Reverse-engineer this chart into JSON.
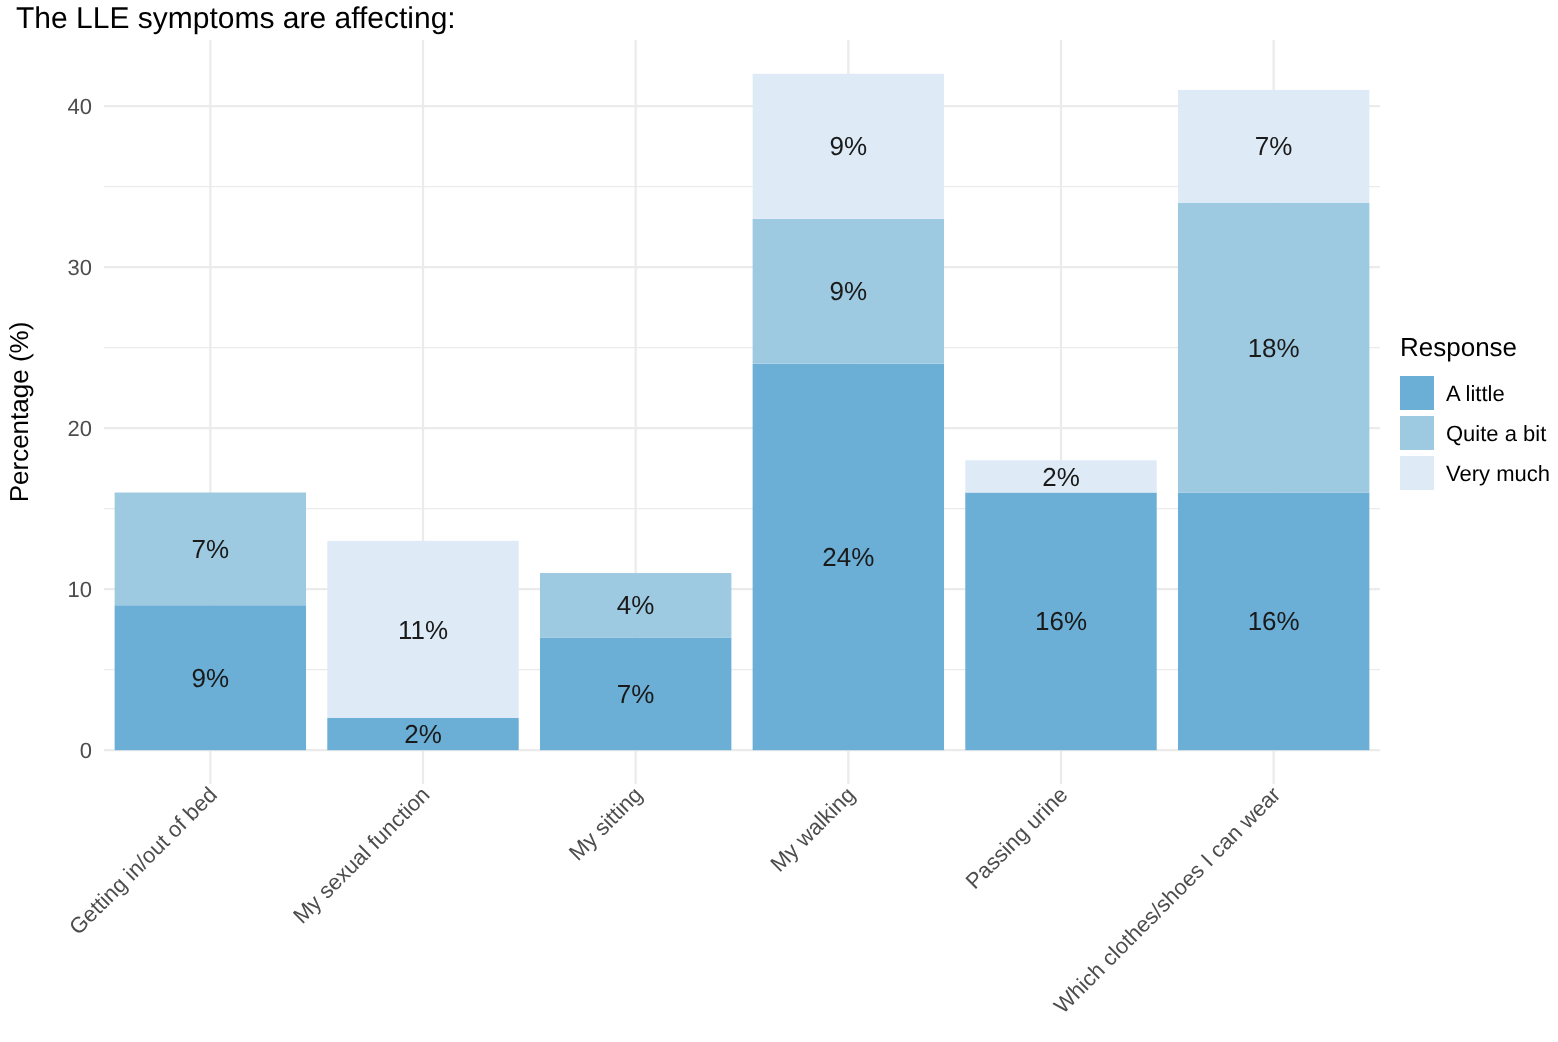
{
  "chart_data": {
    "type": "bar",
    "title": "The LLE symptoms are affecting:",
    "ylabel": "Percentage (%)",
    "legend_title": "Response",
    "categories": [
      "Getting in/out of bed",
      "My sexual function",
      "My sitting",
      "My walking",
      "Passing urine",
      "Which clothes/shoes I can wear"
    ],
    "series": [
      {
        "name": "A little",
        "color": "#6baed6",
        "values": [
          9,
          2,
          7,
          24,
          16,
          16
        ],
        "value_labels": [
          "9%",
          "2%",
          "7%",
          "24%",
          "16%",
          "16%"
        ]
      },
      {
        "name": "Quite a bit",
        "color": "#9ecae1",
        "values": [
          7,
          null,
          4,
          9,
          null,
          18
        ],
        "value_labels": [
          "7%",
          null,
          "4%",
          "9%",
          null,
          "18%"
        ]
      },
      {
        "name": "Very much",
        "color": "#deebf7",
        "values": [
          null,
          11,
          null,
          9,
          2,
          7
        ],
        "value_labels": [
          null,
          "11%",
          null,
          "9%",
          "2%",
          "7%"
        ]
      }
    ],
    "stacked": true,
    "ylim": [
      -2.1,
      44.1
    ],
    "yticks": [
      0,
      {
        "value": 5,
        "label": null
      },
      10,
      {
        "value": 15,
        "label": null
      },
      20,
      {
        "value": 25,
        "label": null
      },
      30,
      {
        "value": 35,
        "label": null
      },
      40
    ],
    "grid": true,
    "legend": "right"
  }
}
